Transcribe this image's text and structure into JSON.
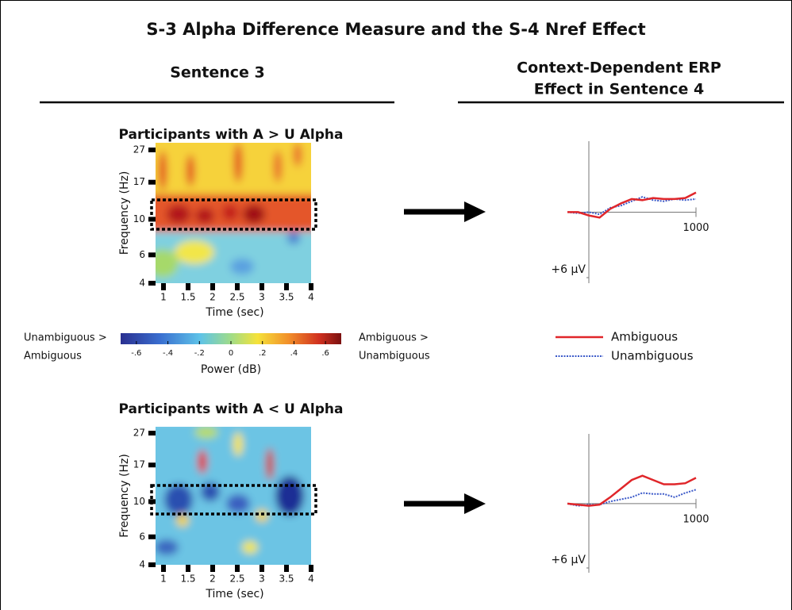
{
  "title": "S-3 Alpha Difference Measure and the S-4 Nref Effect",
  "left_heading": "Sentence 3",
  "right_heading": [
    "Context-Dependent ERP",
    "Effect in Sentence 4"
  ],
  "colorbar": {
    "left_label": [
      "Unambiguous >",
      "Ambiguous"
    ],
    "right_label": [
      "Ambiguous >",
      "Unambiguous"
    ],
    "label": "Power (dB)",
    "lim": [
      -0.7,
      0.7
    ],
    "ticks": [
      {
        "value": -0.6,
        "label": "-.6"
      },
      {
        "value": -0.4,
        "label": "-.4"
      },
      {
        "value": -0.2,
        "label": "-.2"
      },
      0,
      {
        "value": 0.2,
        "label": ".2"
      },
      {
        "value": 0.4,
        "label": ".4"
      },
      {
        "value": 0.6,
        "label": ".6"
      }
    ]
  },
  "legend": [
    {
      "name": "Ambiguous",
      "color": "#e0262a",
      "dotted": false
    },
    {
      "name": "Unambiguous",
      "color": "#3a58c8",
      "dotted": true
    }
  ],
  "panels": [
    {
      "title": "Participants with A > U Alpha",
      "heatmap": {
        "ylabel": "Frequency (Hz)",
        "xlabel": "Time (sec)",
        "log_y": true,
        "ylim": [
          4,
          27
        ],
        "yticks": [
          4,
          6,
          10,
          17,
          27
        ],
        "xlim": [
          1,
          4
        ],
        "xticks": [
          1,
          1.5,
          2,
          2.5,
          3,
          3.5,
          4
        ]
      },
      "erp": {
        "x": [
          -200,
          -100,
          0,
          100,
          200,
          300,
          400,
          500,
          600,
          700,
          800,
          900,
          1000
        ],
        "xlim": [
          -200,
          1000
        ],
        "ylim": [
          -6.5,
          6
        ],
        "xticks": [
          1000
        ],
        "yticks": [
          {
            "value": 6,
            "label": "+6 µV"
          }
        ],
        "series": [
          {
            "values": [
              0,
              0,
              0.3,
              0.5,
              -0.3,
              -0.8,
              -1.2,
              -1.1,
              -1.3,
              -1.2,
              -1.2,
              -1.3,
              -1.8
            ]
          },
          {
            "values": [
              0,
              0.1,
              0,
              0.2,
              -0.4,
              -0.6,
              -1.0,
              -1.4,
              -1.1,
              -1.0,
              -1.2,
              -1.1,
              -1.2
            ]
          }
        ]
      }
    },
    {
      "title": "Participants with A < U Alpha",
      "heatmap": {
        "ylabel": "Frequency (Hz)",
        "xlabel": "Time (sec)",
        "log_y": true,
        "ylim": [
          4,
          27
        ],
        "yticks": [
          4,
          6,
          10,
          17,
          27
        ],
        "xlim": [
          1,
          4
        ],
        "xticks": [
          1,
          1.5,
          2,
          2.5,
          3,
          3.5,
          4
        ]
      },
      "erp": {
        "x": [
          -200,
          -100,
          0,
          100,
          200,
          300,
          400,
          500,
          600,
          700,
          800,
          900,
          1000
        ],
        "xlim": [
          -200,
          1000
        ],
        "ylim": [
          -6.5,
          6
        ],
        "xticks": [
          1000
        ],
        "yticks": [
          {
            "value": 6,
            "label": "+6 µV"
          }
        ],
        "series": [
          {
            "values": [
              0,
              0.1,
              0.2,
              0.1,
              -0.6,
              -1.4,
              -2.2,
              -2.6,
              -2.2,
              -1.8,
              -1.8,
              -1.9,
              -2.4
            ]
          },
          {
            "values": [
              0,
              0.2,
              0.1,
              0.1,
              -0.2,
              -0.4,
              -0.6,
              -1.0,
              -0.9,
              -0.9,
              -0.6,
              -1.0,
              -1.3
            ]
          }
        ]
      }
    }
  ]
}
